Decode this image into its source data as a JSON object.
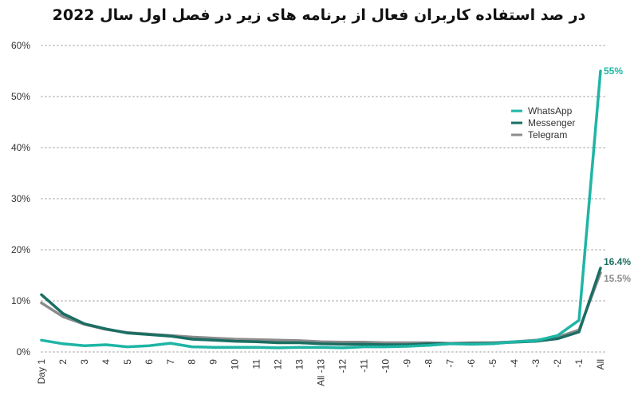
{
  "chart_data": {
    "type": "line",
    "title": "در صد استفاده کاربران فعال از برنامه های زیر در فصل اول سال 2022",
    "xlabel": "",
    "ylabel": "",
    "categories": [
      "Day 1",
      "2",
      "3",
      "4",
      "5",
      "6",
      "7",
      "8",
      "9",
      "10",
      "11",
      "12",
      "13",
      "All -13",
      "-12",
      "-11",
      "-10",
      "-9",
      "-8",
      "-7",
      "-6",
      "-5",
      "-4",
      "-3",
      "-2",
      "-1",
      "All"
    ],
    "y_ticks": [
      "60%",
      "50%",
      "40%",
      "30%",
      "20%",
      "10%",
      "0%"
    ],
    "ylim": [
      0,
      60
    ],
    "grid": "horizontal dotted",
    "legend_position": "right",
    "series": [
      {
        "name": "WhatsApp",
        "color": "#1fb5a5",
        "values": [
          2.3,
          1.6,
          1.2,
          1.4,
          1.0,
          1.2,
          1.7,
          1.0,
          0.9,
          0.9,
          0.9,
          0.8,
          0.9,
          0.9,
          0.8,
          1.0,
          1.0,
          1.1,
          1.3,
          1.6,
          1.5,
          1.6,
          2.0,
          2.2,
          3.2,
          6.2,
          55
        ]
      },
      {
        "name": "Messenger",
        "color": "#1a6e63",
        "values": [
          11.2,
          7.5,
          5.5,
          4.5,
          3.7,
          3.4,
          3.1,
          2.5,
          2.3,
          2.1,
          2.0,
          1.8,
          1.8,
          1.6,
          1.5,
          1.5,
          1.4,
          1.4,
          1.6,
          1.6,
          1.6,
          1.7,
          1.9,
          2.1,
          2.6,
          3.9,
          16.4
        ]
      },
      {
        "name": "Telegram",
        "color": "#8c8c8c",
        "values": [
          9.6,
          6.9,
          5.4,
          4.4,
          3.8,
          3.5,
          3.2,
          2.9,
          2.7,
          2.5,
          2.4,
          2.3,
          2.2,
          2.0,
          1.9,
          1.9,
          1.8,
          1.8,
          1.8,
          1.7,
          1.8,
          1.8,
          2.0,
          2.3,
          2.9,
          4.3,
          15.5
        ]
      }
    ],
    "end_labels": [
      {
        "series": "WhatsApp",
        "text": "55%",
        "color": "#1fb5a5"
      },
      {
        "series": "Messenger",
        "text": "16.4%",
        "color": "#1a6e63"
      },
      {
        "series": "Telegram",
        "text": "15.5%",
        "color": "#8c8c8c"
      }
    ]
  }
}
